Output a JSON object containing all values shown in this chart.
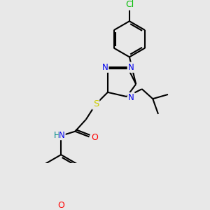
{
  "background_color": "#e8e8e8",
  "bond_color": "#000000",
  "atom_colors": {
    "N": "#0000ee",
    "S": "#cccc00",
    "O": "#ff0000",
    "Cl": "#00bb00",
    "H": "#008888"
  },
  "figsize": [
    3.0,
    3.0
  ],
  "dpi": 100
}
